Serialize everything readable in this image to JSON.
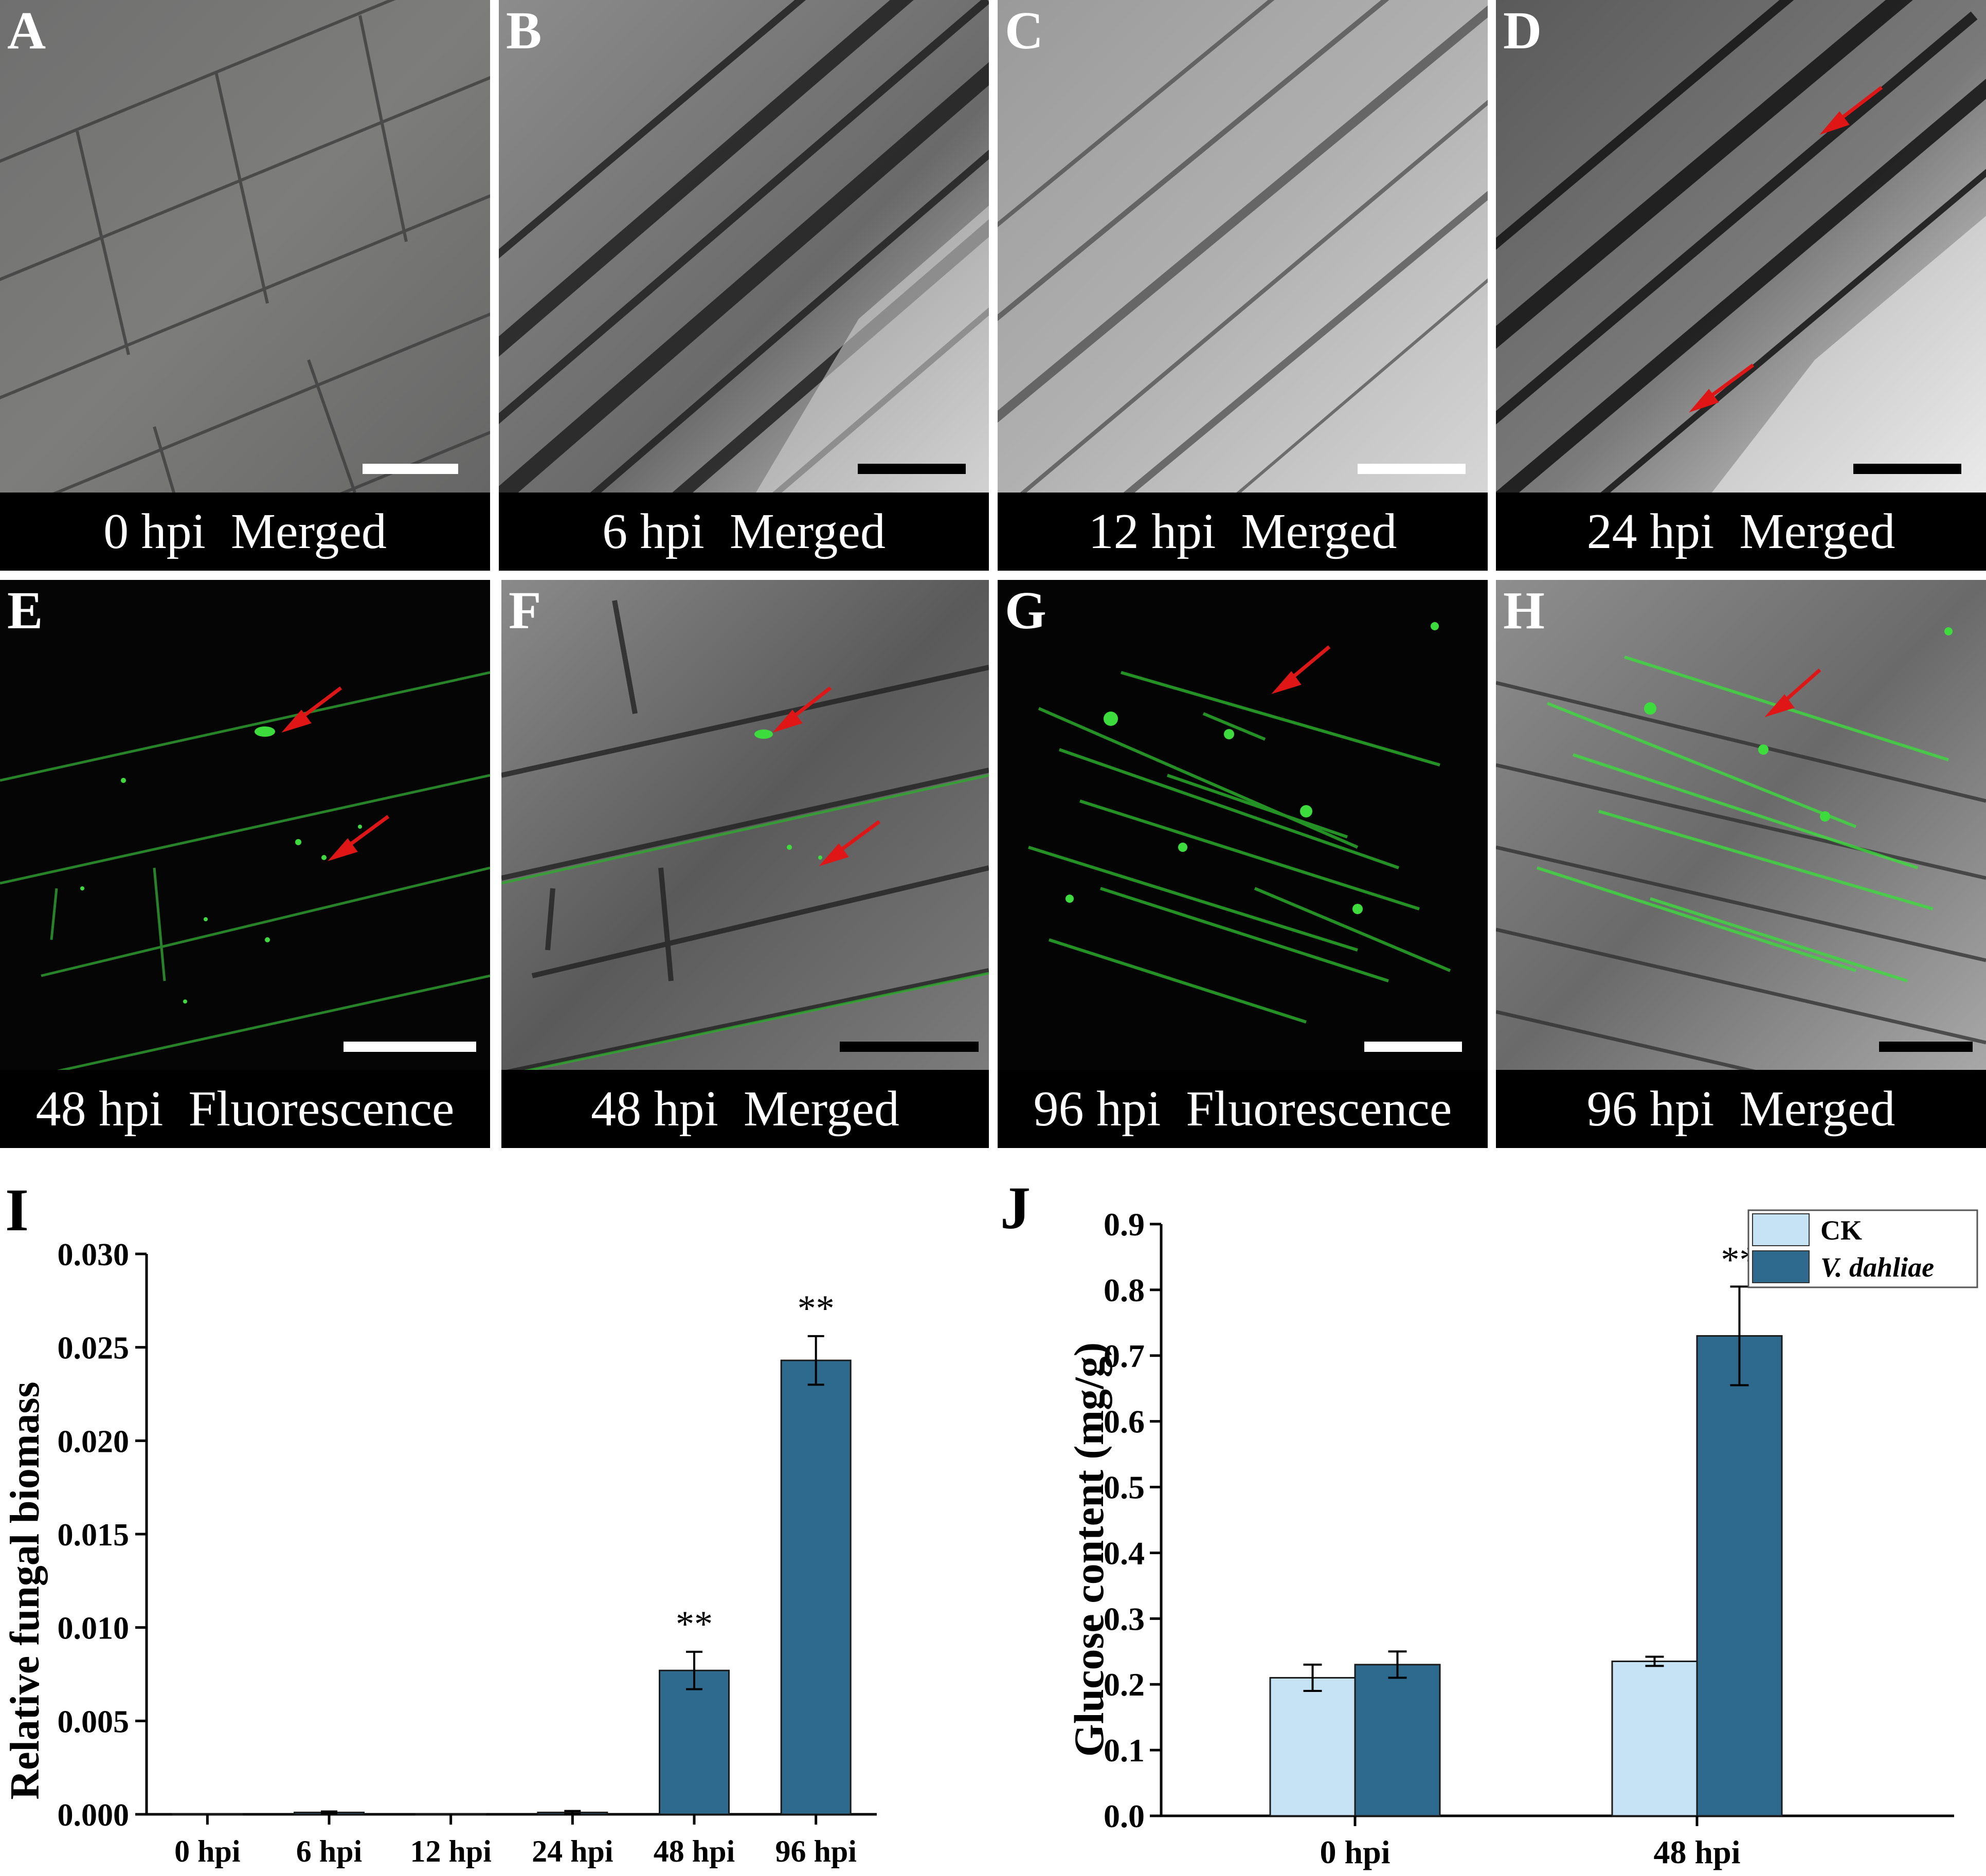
{
  "panels": [
    {
      "letter": "A",
      "caption": "0 hpi  Merged",
      "style": "bright-gray",
      "scalebar": "#ffffff"
    },
    {
      "letter": "B",
      "caption": "6 hpi  Merged",
      "style": "bright-dark",
      "scalebar": "#000000"
    },
    {
      "letter": "C",
      "caption": "12 hpi  Merged",
      "style": "bright-light",
      "scalebar": "#ffffff"
    },
    {
      "letter": "D",
      "caption": "24 hpi  Merged",
      "style": "bright-dark",
      "scalebar": "#000000"
    },
    {
      "letter": "E",
      "caption": "48 hpi  Fluorescence",
      "style": "fluor-sparse",
      "scalebar": "#ffffff"
    },
    {
      "letter": "F",
      "caption": "48 hpi  Merged",
      "style": "merged-sparse",
      "scalebar": "#000000"
    },
    {
      "letter": "G",
      "caption": "96 hpi  Fluorescence",
      "style": "fluor-dense",
      "scalebar": "#ffffff"
    },
    {
      "letter": "H",
      "caption": "96 hpi  Merged",
      "style": "merged-dense",
      "scalebar": "#000000"
    }
  ],
  "colors": {
    "arrow": "#e01515",
    "fungus": "#3ddc3d",
    "ck": "#c6e3f6",
    "vd": "#2e6a8e"
  },
  "chart_data": [
    {
      "panel_label": "I",
      "type": "bar",
      "categories": [
        "0 hpi",
        "6 hpi",
        "12 hpi",
        "24 hpi",
        "48 hpi",
        "96 hpi"
      ],
      "values": [
        0.0,
        0.0001,
        0.0,
        0.0001,
        0.0077,
        0.0243
      ],
      "errors": [
        0.0,
        5e-05,
        0.0,
        8e-05,
        0.001,
        0.0013
      ],
      "significance": [
        "",
        "",
        "",
        "",
        "**",
        "**"
      ],
      "ylabel": "Relative fungal biomass",
      "xlabel": "",
      "ylim": [
        0,
        0.03
      ],
      "yticks": [
        "0.000",
        "0.005",
        "0.010",
        "0.015",
        "0.020",
        "0.025",
        "0.030"
      ],
      "bar_color": "#2e6a8e"
    },
    {
      "panel_label": "J",
      "type": "bar",
      "categories": [
        "0 hpi",
        "48 hpi"
      ],
      "series": [
        {
          "name": "CK",
          "values": [
            0.21,
            0.235
          ],
          "errors": [
            0.02,
            0.007
          ],
          "significance": [
            "",
            ""
          ],
          "color": "#c6e3f6"
        },
        {
          "name": "V. dahliae",
          "values": [
            0.23,
            0.73
          ],
          "errors": [
            0.02,
            0.075
          ],
          "significance": [
            "",
            "**"
          ],
          "color": "#2e6a8e"
        }
      ],
      "ylabel": "Glucose content (mg/g)",
      "xlabel": "",
      "ylim": [
        0,
        0.9
      ],
      "yticks": [
        "0.0",
        "0.1",
        "0.2",
        "0.3",
        "0.4",
        "0.5",
        "0.6",
        "0.7",
        "0.8",
        "0.9"
      ],
      "legend": "top-right"
    }
  ]
}
